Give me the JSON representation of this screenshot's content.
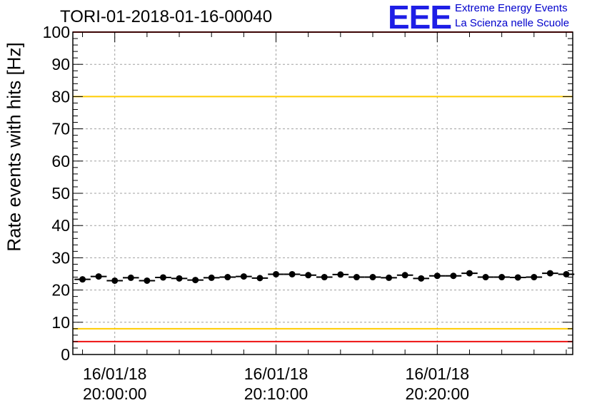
{
  "chart_data": {
    "type": "scatter",
    "title": "TORI-01-2018-01-16-00040",
    "ylabel": "Rate events with hits [Hz]",
    "xlabel": "",
    "ylim": [
      0,
      100
    ],
    "yticks": [
      0,
      10,
      20,
      30,
      40,
      50,
      60,
      70,
      80,
      90,
      100
    ],
    "xlim_minutes": [
      -2.6,
      28.4
    ],
    "xticks": [
      {
        "minute": 0,
        "date": "16/01/18",
        "time": "20:00:00"
      },
      {
        "minute": 10,
        "date": "16/01/18",
        "time": "20:10:00"
      },
      {
        "minute": 20,
        "date": "16/01/18",
        "time": "20:20:00"
      }
    ],
    "x_minutes": [
      -2.0,
      -1.0,
      0.0,
      1.0,
      2.0,
      3.0,
      4.0,
      5.0,
      6.0,
      7.0,
      8.0,
      9.0,
      10.0,
      11.0,
      12.0,
      13.0,
      14.0,
      15.0,
      16.0,
      17.0,
      18.0,
      19.0,
      20.0,
      21.0,
      22.0,
      23.0,
      24.0,
      25.0,
      26.0,
      27.0,
      28.0
    ],
    "values": [
      23.3,
      24.2,
      22.9,
      23.8,
      22.9,
      23.9,
      23.6,
      23.1,
      23.8,
      24.0,
      24.2,
      23.7,
      24.9,
      24.9,
      24.6,
      24.0,
      24.8,
      24.0,
      24.0,
      23.8,
      24.6,
      23.6,
      24.4,
      24.4,
      25.2,
      24.0,
      24.0,
      23.9,
      24.0,
      25.2,
      24.9
    ],
    "error_bar_half_width_minutes": 0.5,
    "reference_lines": [
      {
        "value": 100,
        "color": "#ee1111"
      },
      {
        "value": 80,
        "color": "#ffcc00"
      },
      {
        "value": 8,
        "color": "#ffcc00"
      },
      {
        "value": 4,
        "color": "#ee1111"
      }
    ],
    "grid": true,
    "marker_color": "#000000"
  },
  "logo": {
    "mark": "EEE",
    "line1": "Extreme Energy Events",
    "line2": "La Scienza nelle Scuole"
  }
}
